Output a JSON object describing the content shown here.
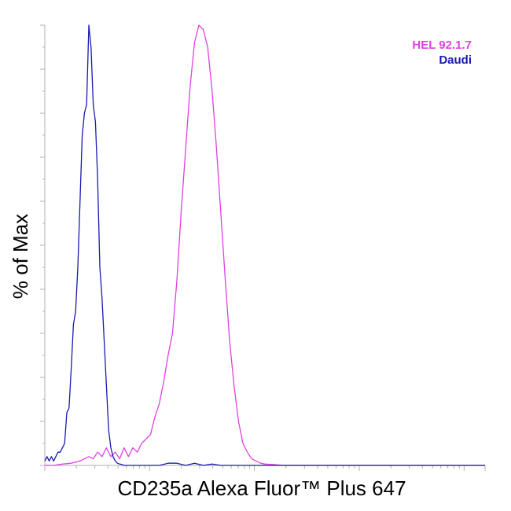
{
  "chart_data": {
    "type": "line",
    "title": "",
    "xlabel": "CD235a Alexa Fluor™ Plus 647",
    "ylabel": "% of Max",
    "ylim": [
      0,
      100
    ],
    "xlim": [
      0,
      1000
    ],
    "grid": false,
    "legend": "top-right",
    "series": [
      {
        "name": "HEL 92.1.7",
        "color": "#e040e0",
        "x": [
          0,
          20,
          40,
          60,
          80,
          100,
          110,
          120,
          130,
          140,
          150,
          160,
          170,
          180,
          190,
          200,
          210,
          220,
          230,
          240,
          250,
          260,
          270,
          280,
          290,
          300,
          310,
          320,
          330,
          340,
          350,
          360,
          370,
          380,
          390,
          400,
          410,
          420,
          430,
          440,
          450,
          460,
          470,
          480,
          490,
          500,
          520,
          540,
          560,
          600,
          700,
          800,
          900,
          1000
        ],
        "y": [
          0,
          0,
          0.3,
          0.5,
          1,
          2,
          1.5,
          3,
          2,
          4,
          2,
          3,
          1.5,
          4,
          2,
          4,
          3,
          5,
          6,
          7,
          11,
          14,
          19,
          25,
          30,
          42,
          58,
          72,
          86,
          96,
          100,
          99,
          95,
          85,
          72,
          57,
          42,
          28,
          18,
          10,
          5,
          3,
          1.5,
          1,
          0.5,
          0.3,
          0.2,
          0,
          0,
          0,
          0,
          0,
          0,
          0
        ]
      },
      {
        "name": "Daudi",
        "color": "#1a1ab0",
        "x": [
          0,
          5,
          10,
          15,
          20,
          25,
          30,
          35,
          40,
          45,
          50,
          55,
          60,
          65,
          70,
          75,
          80,
          85,
          90,
          95,
          100,
          105,
          110,
          115,
          120,
          125,
          130,
          135,
          140,
          145,
          150,
          155,
          160,
          165,
          170,
          175,
          180,
          190,
          200,
          220,
          240,
          260,
          280,
          300,
          320,
          340,
          360,
          380,
          400,
          500,
          700,
          1000
        ],
        "y": [
          1,
          2,
          1,
          2,
          1,
          2,
          3,
          3,
          4,
          5,
          12,
          13,
          22,
          32,
          35,
          45,
          60,
          75,
          80,
          82,
          100,
          95,
          82,
          78,
          65,
          45,
          38,
          28,
          18,
          8,
          4,
          2,
          1,
          0.5,
          0.3,
          0.2,
          0,
          0,
          0,
          0,
          0,
          0,
          0.5,
          0.5,
          0,
          0.5,
          0,
          0.3,
          0,
          0,
          0,
          0
        ]
      }
    ]
  }
}
